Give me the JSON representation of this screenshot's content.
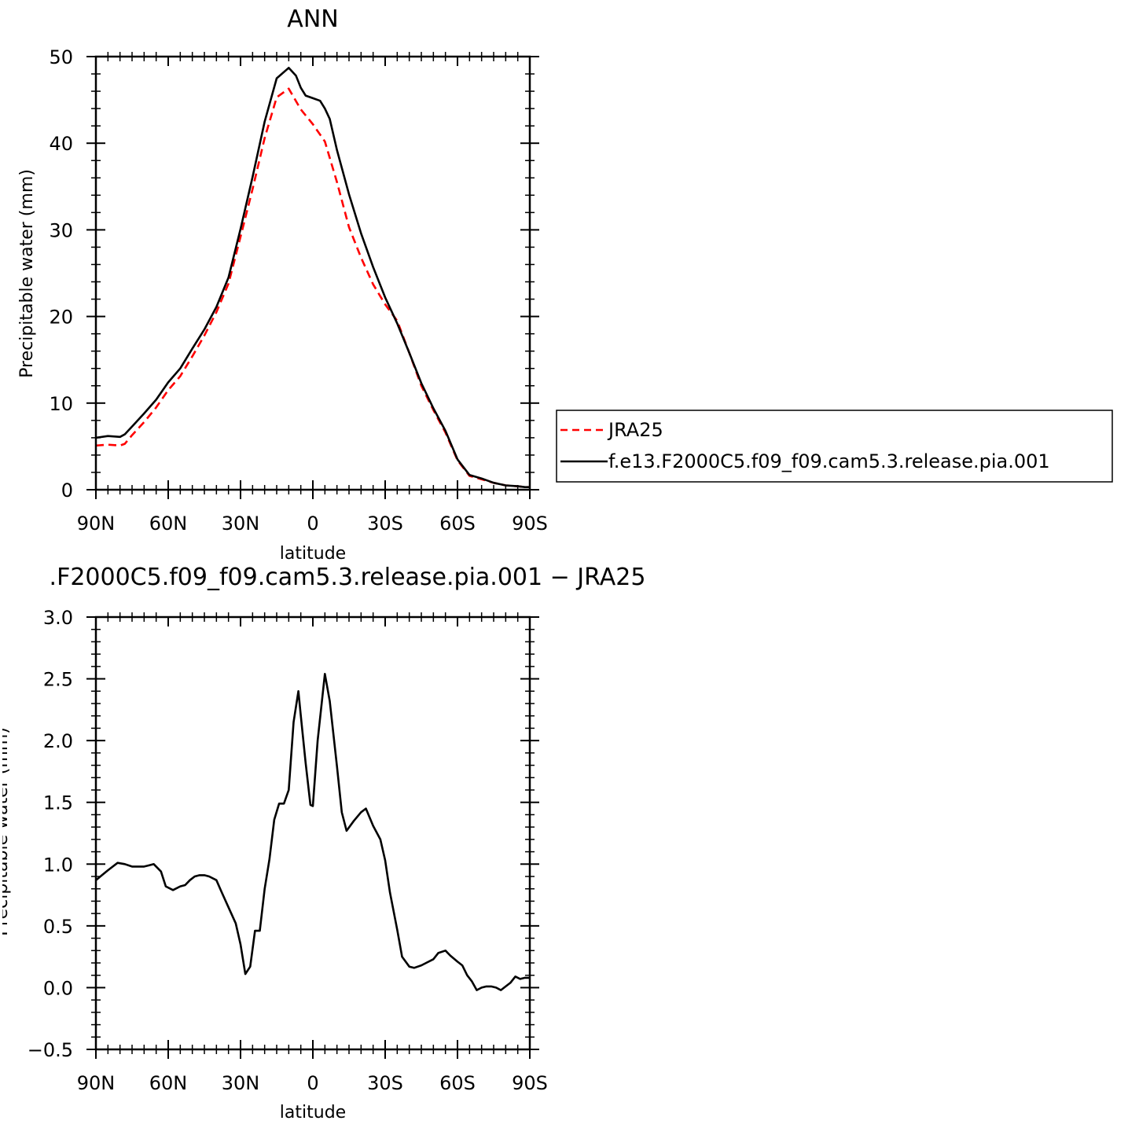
{
  "chart_data": [
    {
      "type": "line",
      "title": "ANN",
      "xlabel": "latitude",
      "ylabel": "Precipitable water (mm)",
      "xlim": [
        90,
        -90
      ],
      "ylim": [
        0,
        50
      ],
      "x_tick_values": [
        90,
        60,
        30,
        0,
        -30,
        -60,
        -90
      ],
      "x_tick_labels": [
        "90N",
        "60N",
        "30N",
        "0",
        "30S",
        "60S",
        "90S"
      ],
      "y_tick_values": [
        0,
        10,
        20,
        30,
        40,
        50
      ],
      "y_tick_labels": [
        "0",
        "10",
        "20",
        "30",
        "40",
        "50"
      ],
      "grid": false,
      "legend_position": "right",
      "series": [
        {
          "name": "JRA25",
          "color": "#ff0000",
          "dash": "dashed",
          "x": [
            90,
            85,
            80,
            78,
            75,
            70,
            65,
            60,
            55,
            50,
            45,
            40,
            35,
            30,
            25,
            20,
            15,
            10,
            5,
            0,
            -5,
            -10,
            -15,
            -20,
            -25,
            -30,
            -35,
            -40,
            -45,
            -50,
            -55,
            -60,
            -65,
            -70,
            -75,
            -80,
            -85,
            -88,
            -90
          ],
          "y": [
            5.1,
            5.2,
            5.1,
            5.3,
            6.3,
            7.8,
            9.5,
            11.5,
            13.1,
            15.4,
            17.8,
            20.5,
            23.8,
            29.2,
            34.7,
            40.6,
            45.3,
            46.3,
            43.9,
            42.2,
            40.2,
            35.5,
            30.3,
            26.8,
            23.7,
            21.4,
            19.5,
            15.8,
            12.0,
            9.2,
            6.6,
            3.4,
            1.6,
            1.2,
            0.8,
            0.5,
            0.4,
            0.3,
            0.3
          ]
        },
        {
          "name": "f.e13.F2000C5.f09_f09.cam5.3.release.pia.001",
          "color": "#000000",
          "dash": "solid",
          "x": [
            90,
            85,
            80,
            78,
            75,
            70,
            65,
            60,
            55,
            50,
            45,
            40,
            35,
            30,
            25,
            20,
            15,
            10,
            7,
            5,
            3,
            0,
            -3,
            -5,
            -7,
            -10,
            -15,
            -20,
            -25,
            -30,
            -35,
            -40,
            -45,
            -50,
            -55,
            -60,
            -65,
            -70,
            -75,
            -80,
            -85,
            -88,
            -90
          ],
          "y": [
            6.0,
            6.2,
            6.1,
            6.4,
            7.3,
            8.8,
            10.4,
            12.4,
            14.0,
            16.3,
            18.5,
            21.1,
            24.5,
            30.1,
            36.1,
            42.5,
            47.5,
            48.7,
            47.8,
            46.4,
            45.5,
            45.2,
            44.9,
            44.0,
            42.8,
            39.2,
            34.1,
            29.6,
            25.7,
            22.2,
            19.2,
            15.8,
            12.3,
            9.4,
            6.8,
            3.5,
            1.7,
            1.3,
            0.8,
            0.5,
            0.4,
            0.3,
            0.3
          ]
        }
      ]
    },
    {
      "type": "line",
      "title": ".F2000C5.f09_f09.cam5.3.release.pia.001  −  JRA25",
      "xlabel": "latitude",
      "ylabel": "Precipitable water (mm)",
      "xlim": [
        90,
        -90
      ],
      "ylim": [
        -0.5,
        3.0
      ],
      "x_tick_values": [
        90,
        60,
        30,
        0,
        -30,
        -60,
        -90
      ],
      "x_tick_labels": [
        "90N",
        "60N",
        "30N",
        "0",
        "30S",
        "60S",
        "90S"
      ],
      "y_tick_values": [
        -0.5,
        0.0,
        0.5,
        1.0,
        1.5,
        2.0,
        2.5,
        3.0
      ],
      "y_tick_labels": [
        "−0.5",
        "0.0",
        "0.5",
        "1.0",
        "1.5",
        "2.0",
        "2.5",
        "3.0"
      ],
      "grid": false,
      "series": [
        {
          "color": "#000000",
          "dash": "solid",
          "x": [
            90,
            85,
            81,
            78,
            75,
            73,
            70,
            68,
            66,
            63,
            61,
            58,
            55,
            53,
            51,
            49,
            47,
            45,
            43,
            40,
            38,
            35,
            32,
            30,
            28,
            26,
            24,
            22,
            20,
            18,
            16,
            14,
            12,
            10,
            8,
            6,
            5,
            3,
            1,
            0,
            -2,
            -5,
            -7,
            -10,
            -12,
            -14,
            -17,
            -20,
            -22,
            -25,
            -28,
            -30,
            -32,
            -35,
            -37,
            -40,
            -42,
            -45,
            -47,
            -50,
            -52,
            -55,
            -57,
            -60,
            -62,
            -64,
            -66,
            -68,
            -70,
            -72,
            -74,
            -76,
            -78,
            -80,
            -82,
            -84,
            -86,
            -88,
            -90
          ],
          "y": [
            0.87,
            0.95,
            1.01,
            1.0,
            0.98,
            0.98,
            0.98,
            0.99,
            1.0,
            0.94,
            0.82,
            0.79,
            0.82,
            0.83,
            0.87,
            0.9,
            0.91,
            0.91,
            0.9,
            0.87,
            0.78,
            0.65,
            0.52,
            0.35,
            0.11,
            0.17,
            0.46,
            0.46,
            0.8,
            1.04,
            1.36,
            1.49,
            1.49,
            1.6,
            2.15,
            2.4,
            2.2,
            1.82,
            1.48,
            1.47,
            2.0,
            2.54,
            2.32,
            1.79,
            1.42,
            1.27,
            1.35,
            1.42,
            1.45,
            1.31,
            1.2,
            1.03,
            0.77,
            0.47,
            0.25,
            0.17,
            0.16,
            0.18,
            0.2,
            0.23,
            0.28,
            0.3,
            0.26,
            0.21,
            0.18,
            0.1,
            0.05,
            -0.02,
            0.0,
            0.01,
            0.01,
            0.0,
            -0.02,
            0.01,
            0.04,
            0.09,
            0.07,
            0.08,
            0.08
          ]
        }
      ]
    }
  ]
}
